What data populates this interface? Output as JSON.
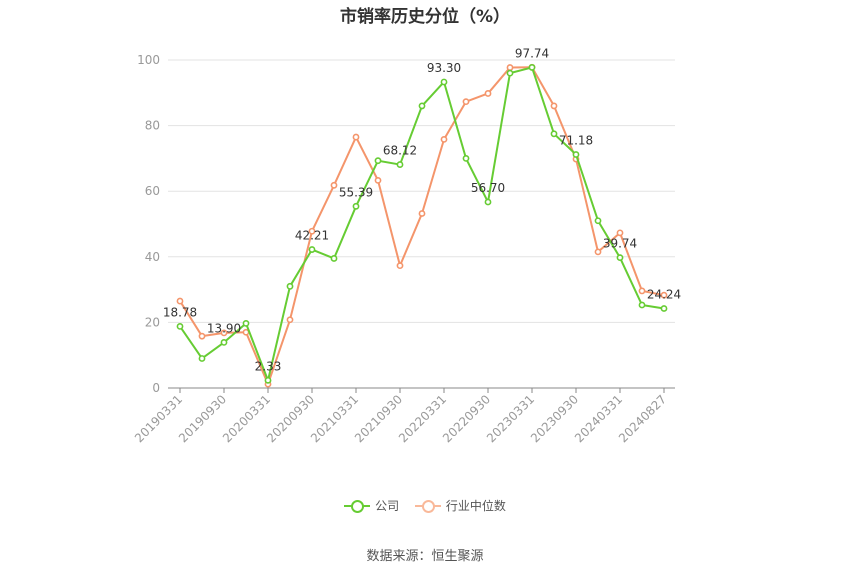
{
  "chart_data": {
    "type": "line",
    "title": "市销率历史分位（%）",
    "source": "数据来源：恒生聚源",
    "ylim": [
      0,
      100
    ],
    "yticks": [
      0,
      20,
      40,
      60,
      80,
      100
    ],
    "x": [
      "20190331",
      "20190630",
      "20190930",
      "20191231",
      "20200331",
      "20200630",
      "20200930",
      "20201231",
      "20210331",
      "20210630",
      "20210930",
      "20211231",
      "20220331",
      "20220630",
      "20220930",
      "20221231",
      "20230331",
      "20230630",
      "20230930",
      "20231231",
      "20240331",
      "20240630",
      "20240827"
    ],
    "x_tick_labels": [
      "20190331",
      "20190930",
      "20200331",
      "20200930",
      "20210331",
      "20210930",
      "20220331",
      "20220930",
      "20230331",
      "20230930",
      "20240331",
      "20240827"
    ],
    "series": [
      {
        "name": "公司",
        "color": "#66cc33",
        "values": [
          18.78,
          9.0,
          13.9,
          19.7,
          2.33,
          31.0,
          42.21,
          39.5,
          55.39,
          69.3,
          68.12,
          86.0,
          93.3,
          70.0,
          56.7,
          96.0,
          97.74,
          77.5,
          71.18,
          51.0,
          39.74,
          25.3,
          24.24
        ]
      },
      {
        "name": "行业中位数",
        "color": "#f4956b",
        "values": [
          26.5,
          15.8,
          16.8,
          17.0,
          1.2,
          20.8,
          47.8,
          61.8,
          76.5,
          63.3,
          37.3,
          53.2,
          75.8,
          87.3,
          89.8,
          97.7,
          97.8,
          86.0,
          69.8,
          41.5,
          47.3,
          29.6,
          28.3
        ]
      }
    ],
    "data_labels": [
      {
        "index": 0,
        "text": "18.78"
      },
      {
        "index": 2,
        "text": "13.90"
      },
      {
        "index": 4,
        "text": "2.33"
      },
      {
        "index": 6,
        "text": "42.21"
      },
      {
        "index": 8,
        "text": "55.39"
      },
      {
        "index": 10,
        "text": "68.12"
      },
      {
        "index": 12,
        "text": "93.30"
      },
      {
        "index": 14,
        "text": "56.70"
      },
      {
        "index": 16,
        "text": "97.74"
      },
      {
        "index": 18,
        "text": "71.18"
      },
      {
        "index": 20,
        "text": "39.74"
      },
      {
        "index": 22,
        "text": "24.24"
      }
    ],
    "legend_position": "bottom",
    "grid": true
  }
}
